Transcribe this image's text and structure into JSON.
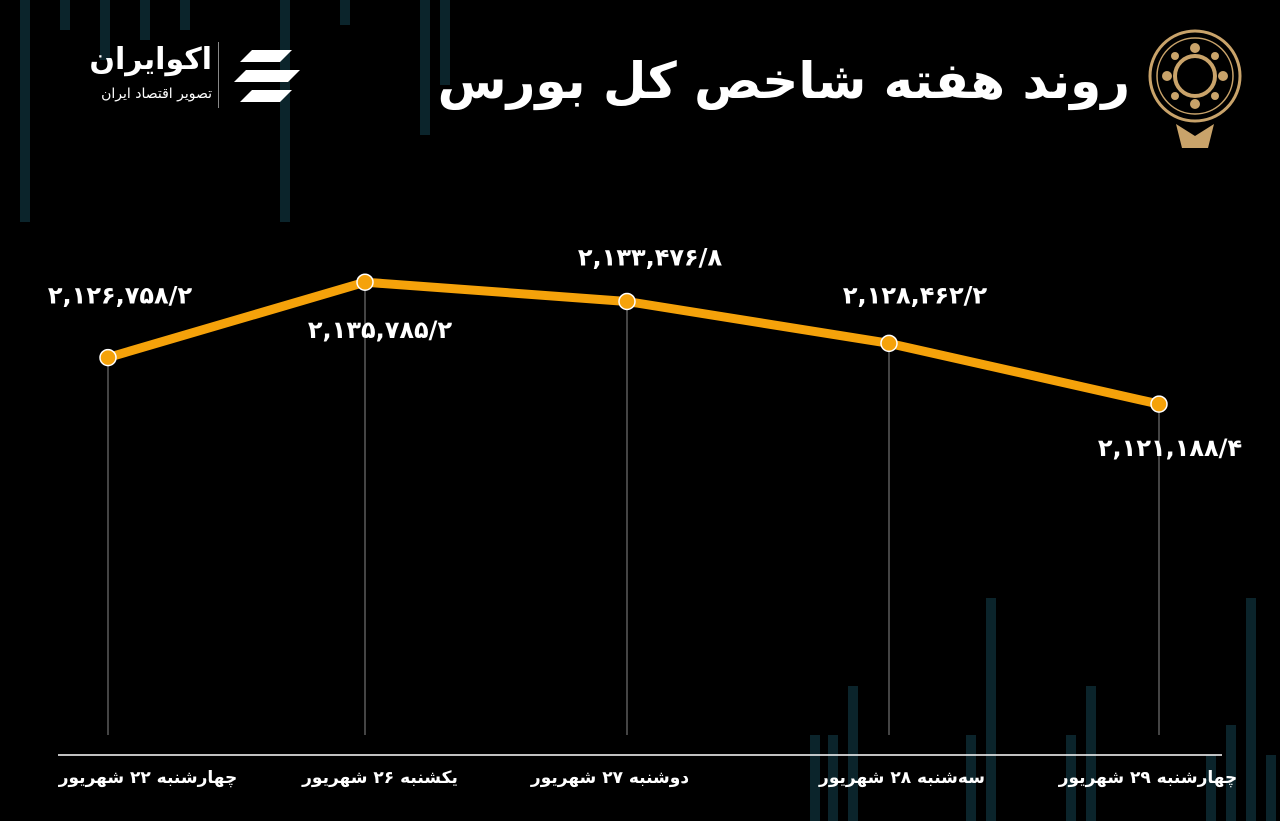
{
  "header": {
    "title": "روند هفته شاخص کل بورس",
    "brand_name": "اکوایران",
    "brand_tagline": "تصویر اقتصاد ایران"
  },
  "colors": {
    "background": "#000000",
    "line": "#f5a20a",
    "guide": "#888888"
  },
  "chart_data": {
    "type": "line",
    "title": "روند هفته شاخص کل بورس",
    "categories": [
      "چهارشنبه ۲۲ شهریور",
      "یکشنبه ۲۶ شهریور",
      "دوشنبه ۲۷ شهریور",
      "سه‌شنبه ۲۸ شهریور",
      "چهارشنبه ۲۹ شهریور"
    ],
    "values": [
      2126758.2,
      2135785.2,
      2133476.8,
      2128462.2,
      2121188.4
    ],
    "data_labels": [
      "۲,۱۲۶,۷۵۸/۲",
      "۲,۱۳۵,۷۸۵/۲",
      "۲,۱۳۳,۴۷۶/۸",
      "۲,۱۲۸,۴۶۲/۲",
      "۲,۱۲۱,۱۸۸/۴"
    ],
    "ylim": [
      2110000,
      2140000
    ],
    "grid": false,
    "legend": "none",
    "xlabel": "",
    "ylabel": ""
  }
}
